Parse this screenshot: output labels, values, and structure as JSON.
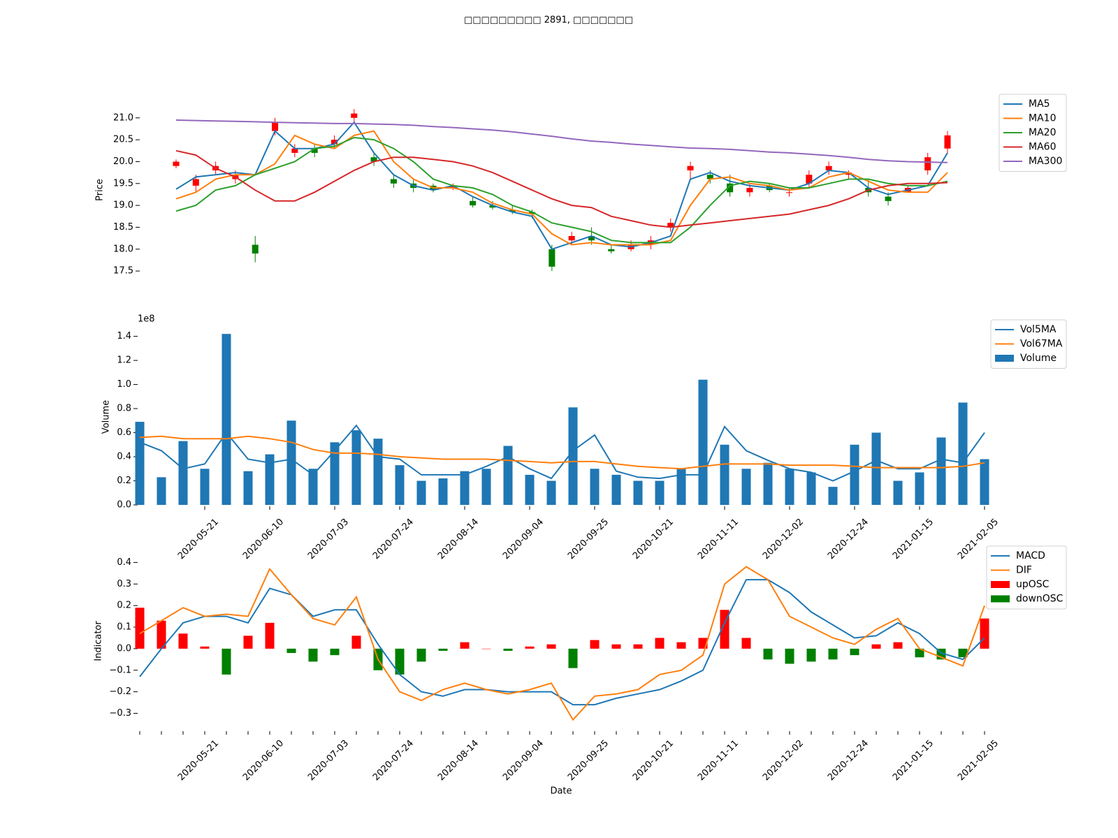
{
  "chart_data": [
    {
      "type": "candlestick",
      "title": "□□□□□□□□□ 2891, □□□□□□□",
      "ylabel": "Price",
      "open": [
        19.9,
        19.45,
        19.8,
        19.6,
        18.1,
        20.7,
        20.2,
        20.3,
        20.4,
        21.0,
        20.1,
        19.6,
        19.5,
        19.45,
        19.4,
        19.1,
        19.0,
        18.9,
        18.85,
        18.0,
        18.2,
        18.3,
        18.0,
        18.0,
        18.1,
        18.5,
        19.8,
        19.7,
        19.5,
        19.3,
        19.45,
        19.3,
        19.5,
        19.8,
        19.7,
        19.4,
        19.2,
        19.3,
        19.8,
        20.3
      ],
      "high": [
        20.05,
        19.7,
        20.0,
        19.8,
        18.3,
        21.0,
        20.4,
        20.4,
        20.6,
        21.2,
        20.2,
        19.7,
        19.6,
        19.5,
        19.5,
        19.2,
        19.1,
        19.0,
        18.9,
        18.1,
        18.4,
        18.5,
        18.1,
        18.2,
        18.3,
        18.7,
        20.0,
        19.8,
        19.7,
        19.5,
        19.5,
        19.4,
        19.8,
        20.0,
        19.8,
        19.6,
        19.3,
        19.45,
        20.2,
        20.7
      ],
      "low": [
        19.85,
        19.3,
        19.7,
        19.5,
        17.7,
        20.6,
        20.1,
        20.1,
        20.3,
        20.9,
        19.9,
        19.4,
        19.3,
        19.3,
        19.35,
        18.95,
        18.9,
        18.8,
        18.7,
        17.5,
        18.1,
        18.1,
        17.9,
        17.95,
        18.0,
        18.4,
        19.6,
        19.5,
        19.2,
        19.2,
        19.3,
        19.2,
        19.4,
        19.7,
        19.6,
        19.2,
        19.0,
        19.3,
        19.7,
        20.2
      ],
      "close": [
        20.0,
        19.6,
        19.9,
        19.7,
        17.9,
        20.9,
        20.3,
        20.2,
        20.5,
        21.1,
        20.0,
        19.5,
        19.4,
        19.35,
        19.45,
        19.0,
        18.95,
        18.85,
        18.8,
        17.6,
        18.3,
        18.2,
        17.95,
        18.1,
        18.2,
        18.6,
        19.9,
        19.6,
        19.3,
        19.4,
        19.35,
        19.3,
        19.7,
        19.9,
        19.75,
        19.3,
        19.1,
        19.4,
        20.1,
        20.6
      ],
      "up_color": "#ff0000",
      "down_color": "#008000",
      "series": [
        {
          "name": "MA5",
          "color": "#1f77b4",
          "values": [
            19.37,
            19.65,
            19.7,
            19.75,
            19.7,
            20.7,
            20.3,
            20.3,
            20.4,
            20.9,
            20.2,
            19.7,
            19.45,
            19.35,
            19.45,
            19.2,
            19.0,
            18.85,
            18.75,
            18.0,
            18.15,
            18.3,
            18.1,
            18.05,
            18.15,
            18.3,
            19.6,
            19.75,
            19.55,
            19.45,
            19.4,
            19.35,
            19.5,
            19.8,
            19.75,
            19.4,
            19.25,
            19.35,
            19.45,
            20.2
          ]
        },
        {
          "name": "MA10",
          "color": "#ff7f0e",
          "values": [
            19.15,
            19.3,
            19.6,
            19.7,
            19.7,
            19.95,
            20.6,
            20.4,
            20.3,
            20.6,
            20.7,
            20.0,
            19.6,
            19.4,
            19.4,
            19.3,
            19.05,
            18.9,
            18.8,
            18.35,
            18.1,
            18.15,
            18.1,
            18.1,
            18.1,
            18.2,
            19.0,
            19.6,
            19.65,
            19.5,
            19.45,
            19.35,
            19.4,
            19.65,
            19.75,
            19.55,
            19.35,
            19.3,
            19.3,
            19.75
          ]
        },
        {
          "name": "MA20",
          "color": "#2ca02c",
          "values": [
            18.87,
            19.0,
            19.35,
            19.45,
            19.7,
            19.85,
            20.0,
            20.3,
            20.35,
            20.55,
            20.5,
            20.3,
            20.0,
            19.6,
            19.45,
            19.4,
            19.25,
            19.0,
            18.85,
            18.6,
            18.5,
            18.4,
            18.2,
            18.15,
            18.15,
            18.15,
            18.5,
            19.0,
            19.45,
            19.55,
            19.5,
            19.4,
            19.4,
            19.5,
            19.6,
            19.6,
            19.5,
            19.45,
            19.45,
            19.55
          ]
        },
        {
          "name": "MA60",
          "color": "#d62728",
          "values": [
            20.25,
            20.15,
            19.85,
            19.65,
            19.35,
            19.1,
            19.1,
            19.3,
            19.55,
            19.8,
            20.0,
            20.1,
            20.1,
            20.05,
            20.0,
            19.9,
            19.75,
            19.55,
            19.35,
            19.15,
            19.0,
            18.95,
            18.75,
            18.65,
            18.55,
            18.5,
            18.55,
            18.6,
            18.65,
            18.7,
            18.75,
            18.8,
            18.9,
            19.0,
            19.15,
            19.35,
            19.45,
            19.5,
            19.5,
            19.52
          ]
        },
        {
          "name": "MA300",
          "color": "#9467bd",
          "values": [
            20.95,
            20.94,
            20.93,
            20.92,
            20.91,
            20.9,
            20.89,
            20.88,
            20.87,
            20.87,
            20.86,
            20.85,
            20.83,
            20.8,
            20.78,
            20.75,
            20.72,
            20.68,
            20.63,
            20.58,
            20.52,
            20.47,
            20.44,
            20.4,
            20.37,
            20.34,
            20.31,
            20.3,
            20.28,
            20.25,
            20.22,
            20.2,
            20.17,
            20.14,
            20.1,
            20.05,
            20.02,
            20.0,
            19.99,
            19.98
          ]
        }
      ],
      "ylim": [
        17.31,
        21.3
      ],
      "yticks": [
        17.5,
        {
          "value": 18,
          "label": "18.0"
        },
        18.5,
        {
          "value": 19,
          "label": "19.0"
        },
        19.5,
        {
          "value": 20,
          "label": "20.0"
        },
        20.5,
        {
          "value": 21,
          "label": "21.0"
        }
      ],
      "legend": "right"
    },
    {
      "type": "combo",
      "ylabel": "Volume",
      "offset_label": "1e8",
      "categories": [
        null,
        null,
        null,
        "2020-05-21",
        null,
        null,
        "2020-06-10",
        null,
        null,
        "2020-07-03",
        null,
        null,
        "2020-07-24",
        null,
        null,
        "2020-08-14",
        null,
        null,
        "2020-09-04",
        null,
        null,
        "2020-09-25",
        null,
        null,
        "2020-10-21",
        null,
        null,
        "2020-11-11",
        null,
        null,
        "2020-12-02",
        null,
        null,
        "2020-12-24",
        null,
        null,
        "2021-01-15",
        null,
        null,
        "2021-02-05"
      ],
      "series": [
        {
          "name": "Vol5MA",
          "kind": "line",
          "color": "#1f77b4",
          "values": [
            0.52,
            0.45,
            0.3,
            0.34,
            0.6,
            0.38,
            0.35,
            0.38,
            0.25,
            0.45,
            0.66,
            0.4,
            0.38,
            0.25,
            0.25,
            0.25,
            0.32,
            0.4,
            0.3,
            0.22,
            0.45,
            0.58,
            0.28,
            0.23,
            0.22,
            0.25,
            0.25,
            0.65,
            0.45,
            0.37,
            0.3,
            0.27,
            0.2,
            0.28,
            0.37,
            0.3,
            0.3,
            0.38,
            0.35,
            0.6
          ]
        },
        {
          "name": "Vol67MA",
          "kind": "line",
          "color": "#ff7f0e",
          "values": [
            0.56,
            0.57,
            0.55,
            0.55,
            0.55,
            0.57,
            0.55,
            0.52,
            0.46,
            0.43,
            0.43,
            0.42,
            0.4,
            0.39,
            0.38,
            0.38,
            0.38,
            0.37,
            0.36,
            0.35,
            0.36,
            0.36,
            0.34,
            0.32,
            0.31,
            0.3,
            0.32,
            0.34,
            0.34,
            0.34,
            0.33,
            0.33,
            0.33,
            0.32,
            0.31,
            0.31,
            0.31,
            0.31,
            0.32,
            0.35
          ]
        },
        {
          "name": "Volume",
          "kind": "bar",
          "color": "#1f77b4",
          "values": [
            0.69,
            0.23,
            0.53,
            0.3,
            1.42,
            0.28,
            0.42,
            0.7,
            0.3,
            0.52,
            0.62,
            0.55,
            0.33,
            0.2,
            0.22,
            0.28,
            0.3,
            0.49,
            0.25,
            0.2,
            0.81,
            0.3,
            0.25,
            0.2,
            0.2,
            0.3,
            1.04,
            0.5,
            0.3,
            0.35,
            0.3,
            0.27,
            0.15,
            0.5,
            0.6,
            0.2,
            0.27,
            0.56,
            0.85,
            0.38
          ]
        }
      ],
      "ylim": [
        0,
        1.45
      ],
      "yticks": [
        {
          "value": 0,
          "label": "0.0"
        },
        0.2,
        0.4,
        0.6,
        0.8,
        {
          "value": 1,
          "label": "1.0"
        },
        1.2,
        1.4
      ],
      "legend": "right"
    },
    {
      "type": "combo",
      "ylabel": "Indicator",
      "xlabel": "Date",
      "minor_ticks": true,
      "categories": [
        null,
        null,
        null,
        "2020-05-21",
        null,
        null,
        "2020-06-10",
        null,
        null,
        "2020-07-03",
        null,
        null,
        "2020-07-24",
        null,
        null,
        "2020-08-14",
        null,
        null,
        "2020-09-04",
        null,
        null,
        "2020-09-25",
        null,
        null,
        "2020-10-21",
        null,
        null,
        "2020-11-11",
        null,
        null,
        "2020-12-02",
        null,
        null,
        "2020-12-24",
        null,
        null,
        "2021-01-15",
        null,
        null,
        "2021-02-05"
      ],
      "series": [
        {
          "name": "MACD",
          "kind": "line",
          "color": "#1f77b4",
          "values": [
            -0.13,
            0.0,
            0.12,
            0.15,
            0.15,
            0.12,
            0.28,
            0.25,
            0.15,
            0.18,
            0.18,
            0.02,
            -0.12,
            -0.2,
            -0.22,
            -0.19,
            -0.19,
            -0.2,
            -0.2,
            -0.2,
            -0.26,
            -0.26,
            -0.23,
            -0.21,
            -0.19,
            -0.15,
            -0.1,
            0.12,
            0.32,
            0.32,
            0.26,
            0.17,
            0.11,
            0.05,
            0.06,
            0.12,
            0.07,
            -0.02,
            -0.05,
            0.05
          ]
        },
        {
          "name": "DIF",
          "kind": "line",
          "color": "#ff7f0e",
          "values": [
            0.07,
            0.13,
            0.19,
            0.15,
            0.16,
            0.15,
            0.37,
            0.25,
            0.14,
            0.11,
            0.24,
            -0.05,
            -0.2,
            -0.24,
            -0.19,
            -0.16,
            -0.19,
            -0.21,
            -0.19,
            -0.16,
            -0.33,
            -0.22,
            -0.21,
            -0.19,
            -0.12,
            -0.1,
            -0.03,
            0.3,
            0.38,
            0.32,
            0.15,
            0.1,
            0.05,
            0.02,
            0.09,
            0.14,
            0.0,
            -0.04,
            -0.08,
            0.2
          ]
        },
        {
          "name": "upOSC",
          "kind": "bar",
          "color": "#ff0000",
          "values": [
            0.19,
            0.13,
            0.07,
            0.01,
            null,
            0.06,
            0.12,
            null,
            null,
            null,
            0.06,
            null,
            null,
            null,
            null,
            0.03,
            0.0,
            null,
            0.01,
            0.02,
            null,
            0.04,
            0.02,
            0.02,
            0.05,
            0.03,
            0.05,
            0.18,
            0.05,
            null,
            null,
            null,
            null,
            null,
            0.02,
            0.03,
            null,
            null,
            null,
            0.14
          ]
        },
        {
          "name": "downOSC",
          "kind": "bar",
          "color": "#008000",
          "values": [
            null,
            null,
            null,
            null,
            -0.12,
            null,
            null,
            -0.02,
            -0.06,
            -0.03,
            null,
            -0.1,
            -0.12,
            -0.06,
            -0.01,
            null,
            null,
            -0.01,
            null,
            null,
            -0.09,
            null,
            null,
            null,
            null,
            null,
            null,
            null,
            null,
            -0.05,
            -0.07,
            -0.06,
            -0.05,
            -0.03,
            null,
            null,
            -0.04,
            -0.05,
            -0.04,
            null
          ]
        }
      ],
      "ylim": [
        -0.36,
        0.45
      ],
      "yticks": [
        {
          "value": -0.3,
          "label": "−0.3"
        },
        {
          "value": -0.2,
          "label": "−0.2"
        },
        {
          "value": -0.1,
          "label": "−0.1"
        },
        {
          "value": 0,
          "label": "0.0"
        },
        0.1,
        0.2,
        0.3,
        0.4
      ],
      "legend": "right"
    }
  ]
}
